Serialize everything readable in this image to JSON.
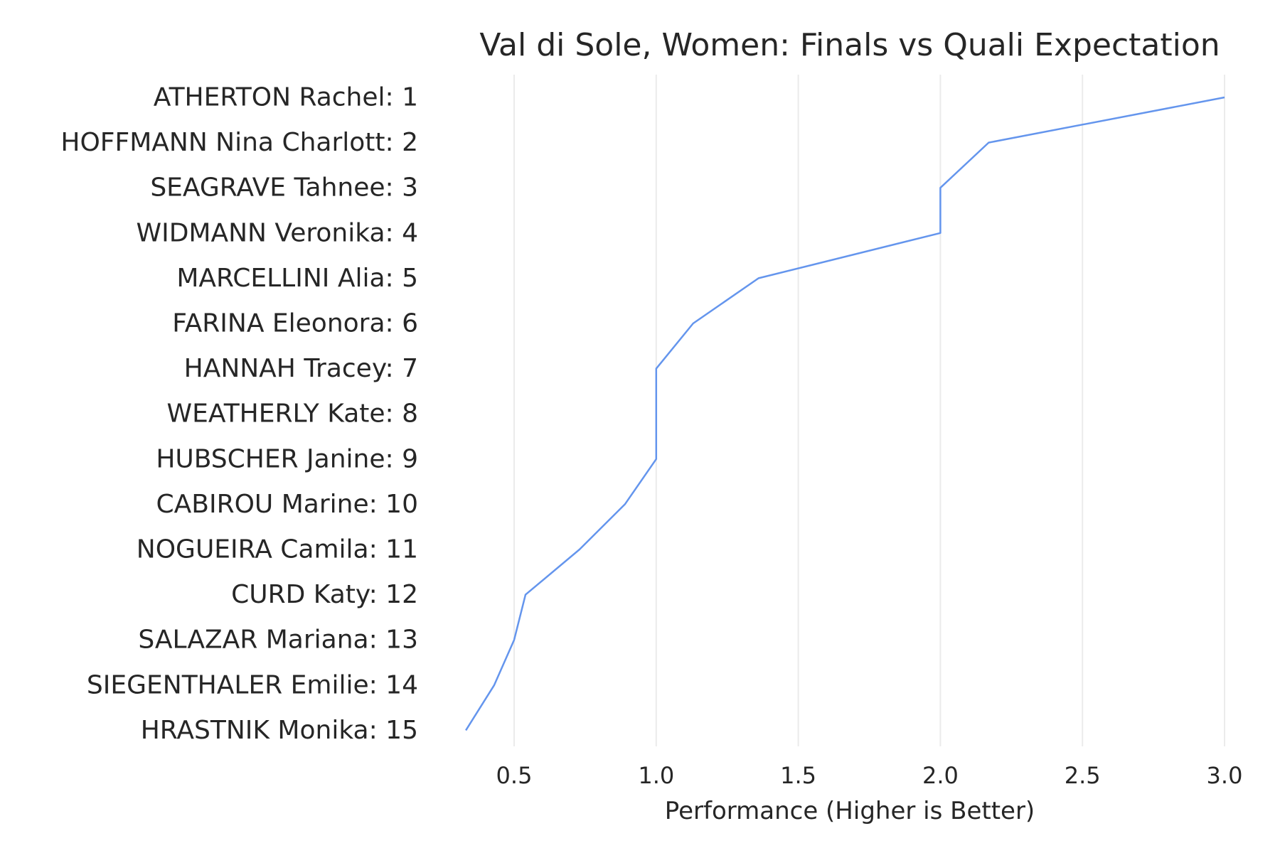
{
  "chart_data": {
    "type": "line",
    "title": "Val di Sole, Women: Finals vs Quali Expectation",
    "xlabel": "Performance (Higher is Better)",
    "ylabel": "",
    "xlim": [
      0.3,
      3.1
    ],
    "xticks": [
      "0.5",
      "1.0",
      "1.5",
      "2.0",
      "2.5",
      "3.0"
    ],
    "xtick_values": [
      0.5,
      1.0,
      1.5,
      2.0,
      2.5,
      3.0
    ],
    "grid": "vertical",
    "categories": [
      "ATHERTON Rachel: 1",
      "HOFFMANN Nina Charlott: 2",
      "SEAGRAVE Tahnee: 3",
      "WIDMANN Veronika: 4",
      "MARCELLINI Alia: 5",
      "FARINA Eleonora: 6",
      "HANNAH Tracey: 7",
      "WEATHERLY Kate: 8",
      "HUBSCHER Janine: 9",
      "CABIROU Marine: 10",
      "NOGUEIRA Camila: 11",
      "CURD Katy: 12",
      "SALAZAR Mariana: 13",
      "SIEGENTHALER Emilie: 14",
      "HRASTNIK Monika: 15"
    ],
    "series": [
      {
        "color": "#6495ed",
        "values": [
          3.0,
          2.17,
          2.0,
          2.0,
          1.36,
          1.13,
          1.0,
          1.0,
          1.0,
          0.89,
          0.73,
          0.54,
          0.5,
          0.43,
          0.33
        ]
      }
    ]
  }
}
